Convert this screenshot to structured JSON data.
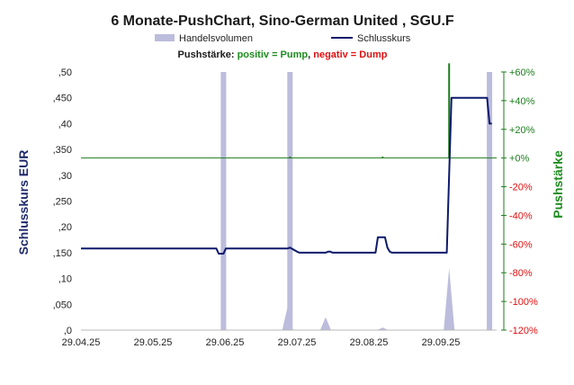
{
  "chart_data": {
    "type": "line",
    "title": "6 Monate-PushChart, Sino-German United , SGU.F",
    "legend": {
      "volume_label": "Handelsvolumen",
      "close_label": "Schlusskurs",
      "placement": "top"
    },
    "push_legend": {
      "prefix": "Pushstärke: ",
      "positive": "positiv = Pump",
      "separator": ", ",
      "negative": "negativ = Dump"
    },
    "ylabel": "Schlusskurs EUR",
    "y2label": "Pushstärke",
    "ylim": [
      0,
      0.5
    ],
    "y2lim": [
      -120,
      60
    ],
    "yticks": [
      ",0",
      ",050",
      ",10",
      ",150",
      ",20",
      ",250",
      ",30",
      ",350",
      ",40",
      ",450",
      ",50"
    ],
    "y2ticks": [
      "+60%",
      "+40%",
      "+20%",
      "+0%",
      "-20%",
      "-40%",
      "-60%",
      "-80%",
      "-100%",
      "-120%"
    ],
    "xticks": [
      "29.04.25",
      "29.05.25",
      "29.06.25",
      "29.07.25",
      "29.08.25",
      "29.09.25"
    ],
    "xrange_days": [
      0,
      175
    ],
    "grid": false,
    "series": [
      {
        "name": "Schlusskurs",
        "color": "#0d1a6b",
        "x_days": [
          0,
          57,
          58,
          60,
          61,
          87,
          88,
          91,
          92,
          103,
          104,
          105,
          106,
          124,
          125,
          128,
          129,
          130,
          131,
          154,
          155,
          156,
          171,
          172,
          173
        ],
        "values": [
          0.158,
          0.158,
          0.148,
          0.148,
          0.158,
          0.158,
          0.16,
          0.152,
          0.15,
          0.15,
          0.152,
          0.152,
          0.15,
          0.15,
          0.18,
          0.18,
          0.16,
          0.152,
          0.15,
          0.15,
          0.3,
          0.45,
          0.45,
          0.4,
          0.4
        ]
      },
      {
        "name": "Handelsvolumen",
        "color": "#bcbcdc",
        "note": "relative volume (0-1 of panel height)",
        "bars_x_days": [
          60,
          88,
          172
        ],
        "bars_values": [
          1.0,
          1.0,
          1.0
        ],
        "peaks_x_days": [
          87,
          103,
          127,
          155
        ],
        "peaks_values": [
          0.09,
          0.05,
          0.01,
          0.24
        ]
      },
      {
        "name": "Pushstärke",
        "color": "#1e7d1e",
        "x_days": [
          88,
          127,
          155
        ],
        "values": [
          1,
          1,
          66
        ]
      }
    ]
  }
}
